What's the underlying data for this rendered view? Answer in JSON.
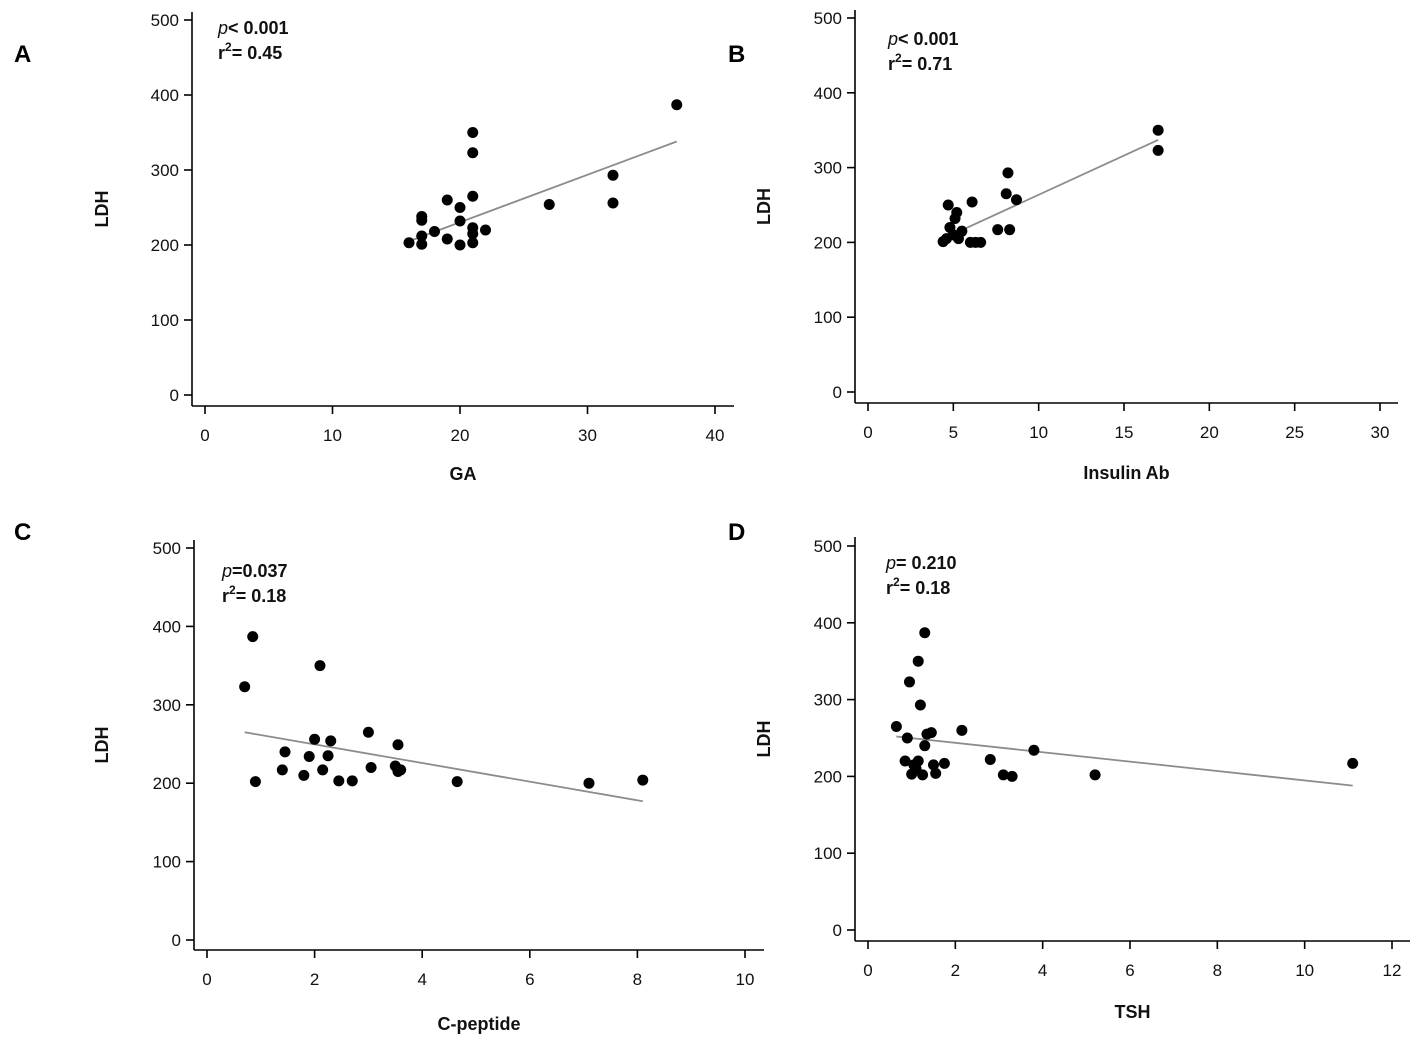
{
  "chart_data": [
    {
      "panel": "A",
      "type": "scatter",
      "xlabel": "GA",
      "ylabel": "LDH",
      "xlim": [
        0,
        40
      ],
      "ylim": [
        0,
        500
      ],
      "xticks": [
        0,
        10,
        20,
        30,
        40
      ],
      "yticks": [
        0,
        100,
        200,
        300,
        400,
        500
      ],
      "stat": {
        "p_symbol": "p",
        "p_text": "< 0.001",
        "r_symbol": "r",
        "r_sup": "2",
        "r_text": "= 0.45"
      },
      "points": [
        [
          16,
          203
        ],
        [
          17,
          201
        ],
        [
          17,
          212
        ],
        [
          17,
          233
        ],
        [
          17,
          238
        ],
        [
          18,
          218
        ],
        [
          19,
          208
        ],
        [
          19,
          260
        ],
        [
          20,
          200
        ],
        [
          20,
          250
        ],
        [
          20,
          232
        ],
        [
          21,
          350
        ],
        [
          21,
          323
        ],
        [
          21,
          265
        ],
        [
          21,
          223
        ],
        [
          21,
          215
        ],
        [
          21,
          203
        ],
        [
          22,
          220
        ],
        [
          27,
          254
        ],
        [
          32,
          293
        ],
        [
          32,
          256
        ],
        [
          37,
          387
        ]
      ],
      "fit": [
        [
          16,
          205
        ],
        [
          37,
          338
        ]
      ]
    },
    {
      "panel": "B",
      "type": "scatter",
      "xlabel": "Insulin Ab",
      "ylabel": "LDH",
      "xlim": [
        0,
        30
      ],
      "ylim": [
        0,
        500
      ],
      "xticks": [
        0,
        5,
        10,
        15,
        20,
        25,
        30
      ],
      "yticks": [
        0,
        100,
        200,
        300,
        400,
        500
      ],
      "stat": {
        "p_symbol": "p",
        "p_text": "< 0.001",
        "r_symbol": "r",
        "r_sup": "2",
        "r_text": "= 0.71"
      },
      "points": [
        [
          4.4,
          201
        ],
        [
          4.6,
          205
        ],
        [
          4.7,
          250
        ],
        [
          4.8,
          220
        ],
        [
          5.0,
          210
        ],
        [
          5.1,
          232
        ],
        [
          5.2,
          240
        ],
        [
          5.3,
          205
        ],
        [
          5.5,
          215
        ],
        [
          6.0,
          200
        ],
        [
          6.1,
          254
        ],
        [
          6.3,
          200
        ],
        [
          6.6,
          200
        ],
        [
          7.6,
          217
        ],
        [
          8.1,
          265
        ],
        [
          8.2,
          293
        ],
        [
          8.3,
          217
        ],
        [
          8.7,
          257
        ],
        [
          17.0,
          350
        ],
        [
          17.0,
          323
        ]
      ],
      "fit": [
        [
          4.4,
          205
        ],
        [
          17.0,
          337
        ]
      ]
    },
    {
      "panel": "C",
      "type": "scatter",
      "xlabel": "C-peptide",
      "ylabel": "LDH",
      "xlim": [
        0,
        10
      ],
      "ylim": [
        0,
        500
      ],
      "xticks": [
        0,
        2,
        4,
        6,
        8,
        10
      ],
      "yticks": [
        0,
        100,
        200,
        300,
        400,
        500
      ],
      "stat": {
        "p_symbol": "p",
        "p_text": "=0.037",
        "r_symbol": "r",
        "r_sup": "2",
        "r_text": "= 0.18"
      },
      "points": [
        [
          0.7,
          323
        ],
        [
          0.85,
          387
        ],
        [
          0.9,
          202
        ],
        [
          1.4,
          217
        ],
        [
          1.45,
          240
        ],
        [
          1.8,
          210
        ],
        [
          1.9,
          234
        ],
        [
          2.0,
          256
        ],
        [
          2.1,
          350
        ],
        [
          2.15,
          217
        ],
        [
          2.25,
          235
        ],
        [
          2.3,
          254
        ],
        [
          2.45,
          203
        ],
        [
          2.7,
          203
        ],
        [
          3.0,
          265
        ],
        [
          3.05,
          220
        ],
        [
          3.5,
          222
        ],
        [
          3.55,
          215
        ],
        [
          3.55,
          249
        ],
        [
          3.6,
          217
        ],
        [
          4.65,
          202
        ],
        [
          7.1,
          200
        ],
        [
          8.1,
          204
        ]
      ],
      "fit": [
        [
          0.7,
          265
        ],
        [
          8.1,
          177
        ]
      ]
    },
    {
      "panel": "D",
      "type": "scatter",
      "xlabel": "TSH",
      "ylabel": "LDH",
      "xlim": [
        0,
        12
      ],
      "ylim": [
        0,
        500
      ],
      "xticks": [
        0,
        2,
        4,
        6,
        8,
        10,
        12
      ],
      "yticks": [
        0,
        100,
        200,
        300,
        400,
        500
      ],
      "stat": {
        "p_symbol": "p",
        "p_text": "= 0.210",
        "r_symbol": "r",
        "r_sup": "2",
        "r_text": "= 0.18"
      },
      "points": [
        [
          0.65,
          265
        ],
        [
          0.85,
          220
        ],
        [
          0.9,
          250
        ],
        [
          0.95,
          323
        ],
        [
          1.0,
          203
        ],
        [
          1.05,
          215
        ],
        [
          1.1,
          210
        ],
        [
          1.15,
          350
        ],
        [
          1.15,
          220
        ],
        [
          1.2,
          293
        ],
        [
          1.25,
          202
        ],
        [
          1.3,
          387
        ],
        [
          1.3,
          240
        ],
        [
          1.35,
          255
        ],
        [
          1.45,
          257
        ],
        [
          1.5,
          215
        ],
        [
          1.55,
          204
        ],
        [
          1.75,
          217
        ],
        [
          2.15,
          260
        ],
        [
          2.8,
          222
        ],
        [
          3.1,
          202
        ],
        [
          3.3,
          200
        ],
        [
          3.8,
          234
        ],
        [
          5.2,
          202
        ],
        [
          11.1,
          217
        ]
      ],
      "fit": [
        [
          0.65,
          252
        ],
        [
          11.1,
          188
        ]
      ]
    }
  ]
}
